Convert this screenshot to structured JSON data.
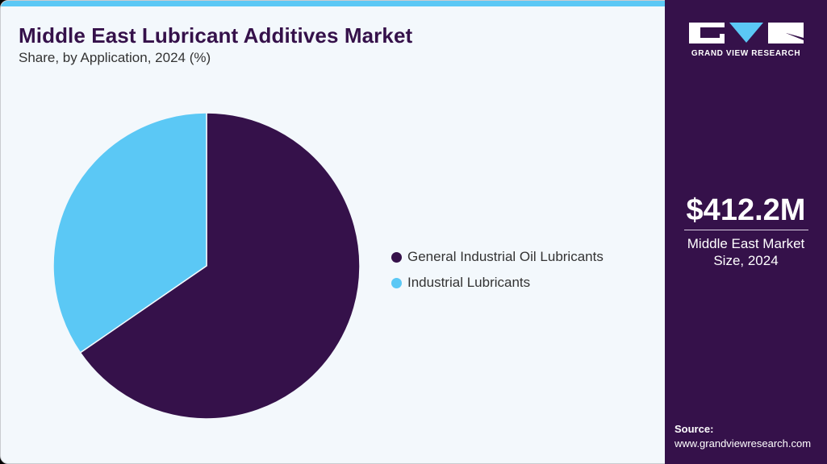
{
  "header": {
    "title": "Middle East Lubricant Additives Market",
    "subtitle": "Share, by Application, 2024 (%)"
  },
  "colors": {
    "accent": "#5bc8f5",
    "brand": "#35114a",
    "background": "#f3f8fc"
  },
  "legend": {
    "items": [
      {
        "label": "General Industrial Oil Lubricants",
        "color": "#35114a"
      },
      {
        "label": "Industrial Lubricants",
        "color": "#5bc8f5"
      }
    ]
  },
  "sidebar": {
    "logo_text": "GRAND VIEW RESEARCH",
    "kpi_value": "$412.2M",
    "kpi_label_line1": "Middle East Market",
    "kpi_label_line2": "Size, 2024",
    "source_label": "Source:",
    "source_url": "www.grandviewresearch.com"
  },
  "chart_data": {
    "type": "pie",
    "title": "Middle East Lubricant Additives Market",
    "subtitle": "Share, by Application, 2024 (%)",
    "categories": [
      "General Industrial Oil Lubricants",
      "Industrial Lubricants"
    ],
    "values": [
      65.4,
      34.6
    ],
    "colors": [
      "#35114a",
      "#5bc8f5"
    ],
    "legend_position": "right",
    "start_angle_deg": 0,
    "direction": "clockwise"
  }
}
